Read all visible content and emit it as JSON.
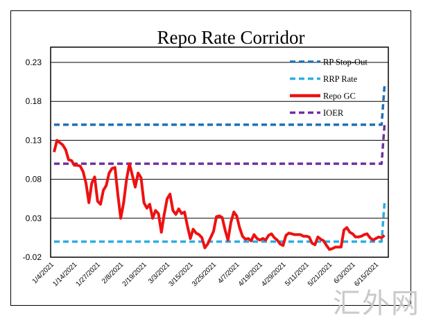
{
  "chart_data": {
    "type": "line",
    "title": "Repo Rate Corridor",
    "xlabel": "",
    "ylabel": "",
    "ylim": [
      -0.02,
      0.23
    ],
    "yticks": [
      "0.23",
      "0.18",
      "0.13",
      "0.08",
      "0.03",
      "-0.02"
    ],
    "ytick_values": [
      0.23,
      0.18,
      0.13,
      0.08,
      0.03,
      -0.02
    ],
    "xticks": [
      "1/4/2021",
      "1/14/2021",
      "1/27/2021",
      "2/8/2021",
      "2/19/2021",
      "3/3/2021",
      "3/15/2021",
      "3/25/2021",
      "4/7/2021",
      "4/19/2021",
      "4/29/2021",
      "5/11/2021",
      "5/21/2021",
      "6/3/2021",
      "6/15/2021"
    ],
    "grid": true,
    "legend_position": "top-right",
    "series": [
      {
        "name": "RP Stop-Out",
        "color": "#1f6fb5",
        "style": "dashed",
        "points": [
          [
            "1/4/2021",
            0.15
          ],
          [
            "6/16/2021",
            0.15
          ],
          [
            "6/17/2021",
            0.2
          ],
          [
            "6/18/2021",
            0.2
          ]
        ]
      },
      {
        "name": "RRP Rate",
        "color": "#2aaee2",
        "style": "dashed",
        "points": [
          [
            "1/4/2021",
            0.0
          ],
          [
            "6/16/2021",
            0.0
          ],
          [
            "6/17/2021",
            0.05
          ],
          [
            "6/18/2021",
            0.05
          ]
        ]
      },
      {
        "name": "Repo GC",
        "color": "#ee1111",
        "style": "solid",
        "points": [
          [
            "1/4/2021",
            0.115
          ],
          [
            "1/5/2021",
            0.13
          ],
          [
            "1/6/2021",
            0.127
          ],
          [
            "1/7/2021",
            0.124
          ],
          [
            "1/8/2021",
            0.118
          ],
          [
            "1/11/2021",
            0.105
          ],
          [
            "1/12/2021",
            0.104
          ],
          [
            "1/13/2021",
            0.098
          ],
          [
            "1/14/2021",
            0.098
          ],
          [
            "1/15/2021",
            0.097
          ],
          [
            "1/19/2021",
            0.09
          ],
          [
            "1/20/2021",
            0.075
          ],
          [
            "1/21/2021",
            0.05
          ],
          [
            "1/22/2021",
            0.075
          ],
          [
            "1/25/2021",
            0.083
          ],
          [
            "1/26/2021",
            0.052
          ],
          [
            "1/27/2021",
            0.048
          ],
          [
            "1/28/2021",
            0.066
          ],
          [
            "1/29/2021",
            0.072
          ],
          [
            "2/1/2021",
            0.088
          ],
          [
            "2/2/2021",
            0.094
          ],
          [
            "2/3/2021",
            0.095
          ],
          [
            "2/4/2021",
            0.06
          ],
          [
            "2/5/2021",
            0.03
          ],
          [
            "2/8/2021",
            0.05
          ],
          [
            "2/9/2021",
            0.08
          ],
          [
            "2/10/2021",
            0.1
          ],
          [
            "2/11/2021",
            0.085
          ],
          [
            "2/12/2021",
            0.07
          ],
          [
            "2/16/2021",
            0.088
          ],
          [
            "2/17/2021",
            0.082
          ],
          [
            "2/18/2021",
            0.05
          ],
          [
            "2/19/2021",
            0.043
          ],
          [
            "2/22/2021",
            0.048
          ],
          [
            "2/23/2021",
            0.03
          ],
          [
            "2/24/2021",
            0.04
          ],
          [
            "2/25/2021",
            0.036
          ],
          [
            "2/26/2021",
            0.012
          ],
          [
            "3/1/2021",
            0.035
          ],
          [
            "3/2/2021",
            0.055
          ],
          [
            "3/3/2021",
            0.061
          ],
          [
            "3/4/2021",
            0.04
          ],
          [
            "3/5/2021",
            0.035
          ],
          [
            "3/8/2021",
            0.042
          ],
          [
            "3/9/2021",
            0.036
          ],
          [
            "3/10/2021",
            0.038
          ],
          [
            "3/11/2021",
            0.02
          ],
          [
            "3/12/2021",
            0.004
          ],
          [
            "3/15/2021",
            0.016
          ],
          [
            "3/16/2021",
            0.011
          ],
          [
            "3/17/2021",
            0.009
          ],
          [
            "3/18/2021",
            0.005
          ],
          [
            "3/19/2021",
            -0.008
          ],
          [
            "3/22/2021",
            -0.003
          ],
          [
            "3/23/2021",
            0.005
          ],
          [
            "3/24/2021",
            0.013
          ],
          [
            "3/25/2021",
            0.032
          ],
          [
            "3/26/2021",
            0.033
          ],
          [
            "3/29/2021",
            0.031
          ],
          [
            "3/30/2021",
            0.015
          ],
          [
            "3/31/2021",
            0.002
          ],
          [
            "4/1/2021",
            0.025
          ],
          [
            "4/5/2021",
            0.038
          ],
          [
            "4/6/2021",
            0.033
          ],
          [
            "4/7/2021",
            0.018
          ],
          [
            "4/8/2021",
            0.007
          ],
          [
            "4/9/2021",
            0.003
          ],
          [
            "4/12/2021",
            0.004
          ],
          [
            "4/13/2021",
            0.001
          ],
          [
            "4/14/2021",
            0.009
          ],
          [
            "4/15/2021",
            0.004
          ],
          [
            "4/16/2021",
            0.002
          ],
          [
            "4/19/2021",
            0.004
          ],
          [
            "4/20/2021",
            0.002
          ],
          [
            "4/21/2021",
            0.008
          ],
          [
            "4/22/2021",
            0.01
          ],
          [
            "4/23/2021",
            0.005
          ],
          [
            "4/26/2021",
            0.002
          ],
          [
            "4/27/2021",
            -0.003
          ],
          [
            "4/28/2021",
            -0.005
          ],
          [
            "4/29/2021",
            0.008
          ],
          [
            "4/30/2021",
            0.011
          ],
          [
            "5/3/2021",
            0.01
          ],
          [
            "5/4/2021",
            0.009
          ],
          [
            "5/5/2021",
            0.009
          ],
          [
            "5/6/2021",
            0.009
          ],
          [
            "5/7/2021",
            0.007
          ],
          [
            "5/10/2021",
            0.007
          ],
          [
            "5/11/2021",
            0.006
          ],
          [
            "5/12/2021",
            -0.002
          ],
          [
            "5/13/2021",
            -0.004
          ],
          [
            "5/14/2021",
            0.006
          ],
          [
            "5/17/2021",
            0.003
          ],
          [
            "5/18/2021",
            0.001
          ],
          [
            "5/19/2021",
            -0.005
          ],
          [
            "5/20/2021",
            -0.01
          ],
          [
            "5/21/2021",
            -0.009
          ],
          [
            "5/24/2021",
            -0.007
          ],
          [
            "5/25/2021",
            -0.007
          ],
          [
            "5/26/2021",
            -0.007
          ],
          [
            "5/27/2021",
            0.015
          ],
          [
            "5/28/2021",
            0.018
          ],
          [
            "6/1/2021",
            0.012
          ],
          [
            "6/2/2021",
            0.01
          ],
          [
            "6/3/2021",
            0.006
          ],
          [
            "6/4/2021",
            0.006
          ],
          [
            "6/7/2021",
            0.007
          ],
          [
            "6/8/2021",
            0.009
          ],
          [
            "6/9/2021",
            0.01
          ],
          [
            "6/10/2021",
            0.005
          ],
          [
            "6/11/2021",
            0.002
          ],
          [
            "6/14/2021",
            0.004
          ],
          [
            "6/15/2021",
            0.006
          ],
          [
            "6/16/2021",
            0.005
          ],
          [
            "6/17/2021",
            0.008
          ]
        ]
      },
      {
        "name": "IOER",
        "color": "#7030a0",
        "style": "dashed",
        "points": [
          [
            "1/4/2021",
            0.1
          ],
          [
            "6/16/2021",
            0.1
          ],
          [
            "6/17/2021",
            0.15
          ],
          [
            "6/18/2021",
            0.15
          ]
        ]
      }
    ],
    "legend_order": [
      "RP Stop-Out",
      "RRP Rate",
      "Repo GC",
      "IOER"
    ]
  },
  "watermark": "汇外网"
}
